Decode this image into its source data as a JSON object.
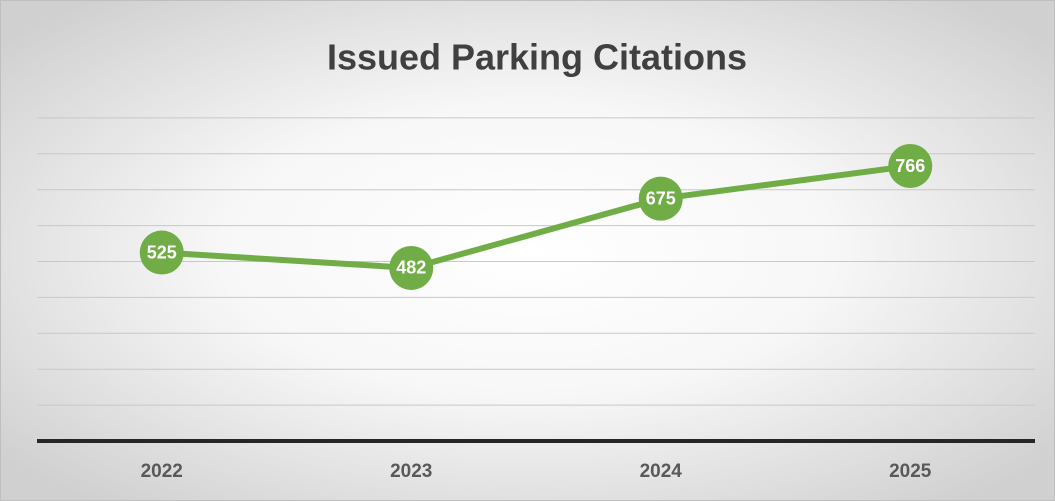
{
  "chart_data": {
    "type": "line",
    "title": "Issued Parking Citations",
    "categories": [
      "2022",
      "2023",
      "2024",
      "2025"
    ],
    "values": [
      525,
      482,
      675,
      766
    ],
    "color": "#70ad47",
    "ylim": [
      0,
      1000
    ],
    "yticks": [
      0,
      100,
      200,
      300,
      400,
      500,
      600,
      700,
      800,
      900
    ],
    "grid": true
  }
}
